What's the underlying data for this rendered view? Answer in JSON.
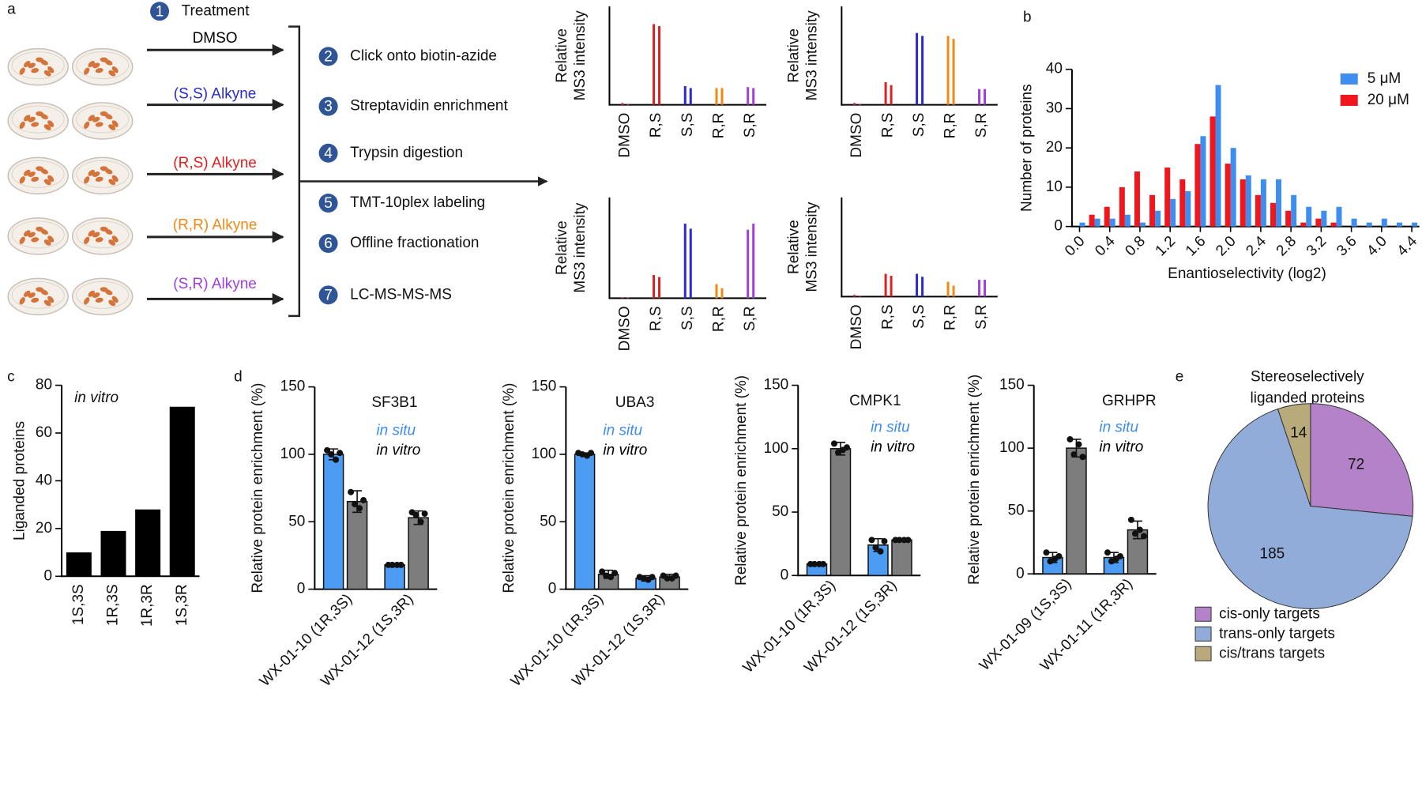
{
  "panel_labels": [
    "a",
    "b",
    "c",
    "d",
    "e"
  ],
  "workflow": {
    "treatment": {
      "number": "1",
      "label": "Treatment"
    },
    "conditions": [
      {
        "label": "DMSO",
        "color": "#000000"
      },
      {
        "label": "(S,S) Alkyne",
        "color": "#2a2ad0"
      },
      {
        "label": "(R,S) Alkyne",
        "color": "#e02020"
      },
      {
        "label": "(R,R) Alkyne",
        "color": "#ef8a17"
      },
      {
        "label": "(S,R) Alkyne",
        "color": "#a23ee0"
      }
    ],
    "steps": [
      {
        "number": "2",
        "label": "Click onto biotin-azide"
      },
      {
        "number": "3",
        "label": "Streptavidin enrichment"
      },
      {
        "number": "4",
        "label": "Trypsin digestion"
      },
      {
        "number": "5",
        "label": "TMT-10plex labeling"
      },
      {
        "number": "6",
        "label": "Offline fractionation"
      },
      {
        "number": "7",
        "label": "LC-MS-MS-MS"
      }
    ]
  },
  "chart_data": [
    {
      "type": "bar",
      "ylabel": [
        "Relative",
        "MS3 intensity"
      ],
      "categories": [
        "DMSO",
        "R,S",
        "S,S",
        "R,R",
        "S,R"
      ],
      "category_colors": [
        "#d05060",
        "#e02020",
        "#2a2ad0",
        "#ef8a17",
        "#a23ee0"
      ],
      "ylim": [
        0,
        100
      ],
      "series": [
        {
          "values": [
            2,
            82,
            19,
            17,
            18
          ]
        },
        {
          "values": [
            1,
            80,
            17,
            17,
            17
          ]
        }
      ]
    },
    {
      "type": "bar",
      "ylabel": [
        "Relative",
        "MS3 intensity"
      ],
      "categories": [
        "DMSO",
        "R,S",
        "S,S",
        "R,R",
        "S,R"
      ],
      "category_colors": [
        "#d05060",
        "#e02020",
        "#2a2ad0",
        "#ef8a17",
        "#a23ee0"
      ],
      "ylim": [
        0,
        100
      ],
      "series": [
        {
          "values": [
            2,
            23,
            73,
            70,
            16
          ]
        },
        {
          "values": [
            1,
            20,
            70,
            67,
            16
          ]
        }
      ]
    },
    {
      "type": "bar",
      "ylabel": [
        "Relative",
        "MS3 intensity"
      ],
      "categories": [
        "DMSO",
        "R,S",
        "S,S",
        "R,R",
        "S,R"
      ],
      "category_colors": [
        "#d05060",
        "#e02020",
        "#2a2ad0",
        "#ef8a17",
        "#a23ee0"
      ],
      "ylim": [
        0,
        100
      ],
      "series": [
        {
          "values": [
            1,
            23,
            74,
            14,
            68
          ]
        },
        {
          "values": [
            1,
            21,
            69,
            10,
            74
          ]
        }
      ]
    },
    {
      "type": "bar",
      "ylabel": [
        "Relative",
        "MS3 intensity"
      ],
      "categories": [
        "DMSO",
        "R,S",
        "S,S",
        "R,R",
        "S,R"
      ],
      "category_colors": [
        "#d05060",
        "#e02020",
        "#2a2ad0",
        "#ef8a17",
        "#a23ee0"
      ],
      "ylim": [
        0,
        100
      ],
      "series": [
        {
          "values": [
            2,
            23,
            23,
            15,
            17
          ]
        },
        {
          "values": [
            1,
            21,
            20,
            11,
            17
          ]
        }
      ]
    },
    {
      "type": "bar",
      "xlabel": "Enantioselectivity (log2)",
      "ylabel": "Number of proteins",
      "x": [
        0.0,
        0.2,
        0.4,
        0.6,
        0.8,
        1.0,
        1.2,
        1.4,
        1.6,
        1.8,
        2.0,
        2.2,
        2.4,
        2.6,
        2.8,
        3.0,
        3.2,
        3.4,
        3.6,
        3.8,
        4.0,
        4.2,
        4.4
      ],
      "xlim": [
        -0.1,
        4.5
      ],
      "xticks": [
        {
          "value": 0,
          "label": "0.0"
        },
        {
          "value": 0.4,
          "label": "0.4"
        },
        {
          "value": 0.8,
          "label": "0.8"
        },
        {
          "value": 1.2,
          "label": "1.2"
        },
        {
          "value": 1.6,
          "label": "1.6"
        },
        {
          "value": 2,
          "label": "2.0"
        },
        {
          "value": 2.4,
          "label": "2.4"
        },
        {
          "value": 2.8,
          "label": "2.8"
        },
        {
          "value": 3.2,
          "label": "3.2"
        },
        {
          "value": 3.6,
          "label": "3.6"
        },
        {
          "value": 4,
          "label": "4.0"
        },
        {
          "value": 4.4,
          "label": "4.4"
        }
      ],
      "ylim": [
        0,
        40
      ],
      "yticks": [
        0,
        10,
        20,
        30,
        40
      ],
      "series": [
        {
          "name": "5 μM",
          "color": "#3d8ef0",
          "values": [
            1,
            2,
            2,
            3,
            1,
            4,
            7,
            9,
            23,
            36,
            20,
            13,
            12,
            12,
            8,
            5,
            4,
            5,
            2,
            1,
            2,
            1,
            1
          ]
        },
        {
          "name": "20 μM",
          "color": "#f0161c",
          "values": [
            0,
            3,
            5,
            10,
            14,
            8,
            15,
            12,
            21,
            28,
            16,
            12,
            8,
            6,
            4,
            1,
            2,
            1,
            0,
            0,
            0,
            0,
            0
          ]
        }
      ]
    },
    {
      "type": "bar",
      "ylabel": "Liganded proteins",
      "annotation": "in vitro",
      "categories": [
        "1S,3S",
        "1R,3S",
        "1R,3R",
        "1S,3R"
      ],
      "values": [
        10,
        19,
        28,
        71
      ],
      "color": "#000000",
      "ylim": [
        0,
        80
      ],
      "yticks": [
        0,
        20,
        40,
        60,
        80
      ]
    },
    {
      "type": "bar",
      "title": "SF3B1",
      "ylabel": "Relative protein enrichment (%)",
      "categories": [
        "WX-01-10 (1R,3S)",
        "WX-01-12 (1S,3R)"
      ],
      "ylim": [
        0,
        150
      ],
      "yticks": [
        0,
        50,
        100,
        150
      ],
      "legend_colors": [
        "#3d8ef0",
        "#000000"
      ],
      "series": [
        {
          "name": "in situ",
          "color": "#4b9cf2",
          "values": [
            100,
            18
          ],
          "errors": [
            4,
            1
          ],
          "points": [
            [
              103,
              100,
              96,
              101
            ],
            [
              18,
              18,
              18,
              18
            ]
          ]
        },
        {
          "name": "in vitro",
          "color": "#7d7d7d",
          "values": [
            65,
            53
          ],
          "errors": [
            8,
            5
          ],
          "points": [
            [
              72,
              63,
              60,
              66
            ],
            [
              57,
              55,
              50,
              56
            ]
          ]
        }
      ]
    },
    {
      "type": "bar",
      "title": "UBA3",
      "ylabel": "Relative protein enrichment (%)",
      "categories": [
        "WX-01-10 (1R,3S)",
        "WX-01-12 (1S,3R)"
      ],
      "ylim": [
        0,
        150
      ],
      "yticks": [
        0,
        50,
        100,
        150
      ],
      "legend_colors": [
        "#3d8ef0",
        "#000000"
      ],
      "series": [
        {
          "name": "in situ",
          "color": "#4b9cf2",
          "values": [
            100,
            8
          ],
          "errors": [
            1,
            2
          ],
          "points": [
            [
              101,
              100,
              99,
              101
            ],
            [
              9,
              8,
              7,
              9
            ]
          ]
        },
        {
          "name": "in vitro",
          "color": "#7d7d7d",
          "values": [
            11,
            9
          ],
          "errors": [
            3,
            2
          ],
          "points": [
            [
              13,
              10,
              9,
              12
            ],
            [
              10,
              8,
              8,
              10
            ]
          ]
        }
      ]
    },
    {
      "type": "bar",
      "title": "CMPK1",
      "ylabel": "Relative protein enrichment (%)",
      "categories": [
        "WX-01-10 (1R,3S)",
        "WX-01-12 (1S,3R)"
      ],
      "ylim": [
        0,
        150
      ],
      "yticks": [
        0,
        50,
        100,
        150
      ],
      "legend_colors": [
        "#3d8ef0",
        "#000000"
      ],
      "series": [
        {
          "name": "in situ",
          "color": "#4b9cf2",
          "values": [
            9,
            24
          ],
          "errors": [
            1,
            5
          ],
          "points": [
            [
              9,
              9,
              9,
              9
            ],
            [
              28,
              22,
              19,
              27
            ]
          ]
        },
        {
          "name": "in vitro",
          "color": "#7d7d7d",
          "values": [
            100,
            28
          ],
          "errors": [
            5,
            1
          ],
          "points": [
            [
              104,
              97,
              99,
              101
            ],
            [
              28,
              28,
              28,
              28
            ]
          ]
        }
      ]
    },
    {
      "type": "bar",
      "title": "GRHPR",
      "ylabel": "Relative protein enrichment (%)",
      "categories": [
        "WX-01-09 (1S,3S)",
        "WX-01-11 (1R,3R)"
      ],
      "ylim": [
        0,
        150
      ],
      "yticks": [
        0,
        50,
        100,
        150
      ],
      "legend_colors": [
        "#3d8ef0",
        "#000000"
      ],
      "series": [
        {
          "name": "in situ",
          "color": "#4b9cf2",
          "values": [
            13,
            13
          ],
          "errors": [
            4,
            4
          ],
          "points": [
            [
              17,
              10,
              12,
              14
            ],
            [
              17,
              10,
              12,
              14
            ]
          ]
        },
        {
          "name": "in vitro",
          "color": "#7d7d7d",
          "values": [
            100,
            35
          ],
          "errors": [
            7,
            7
          ],
          "points": [
            [
              107,
              95,
              103,
              93
            ],
            [
              43,
              32,
              35,
              30
            ]
          ]
        }
      ]
    },
    {
      "type": "pie",
      "title": [
        "Stereoselectively",
        "liganded proteins"
      ],
      "categories": [
        "cis-only targets",
        "trans-only targets",
        "cis/trans targets"
      ],
      "values": [
        72,
        185,
        14
      ],
      "colors": [
        "#b382c9",
        "#92acd9",
        "#b9aa7c"
      ]
    }
  ]
}
